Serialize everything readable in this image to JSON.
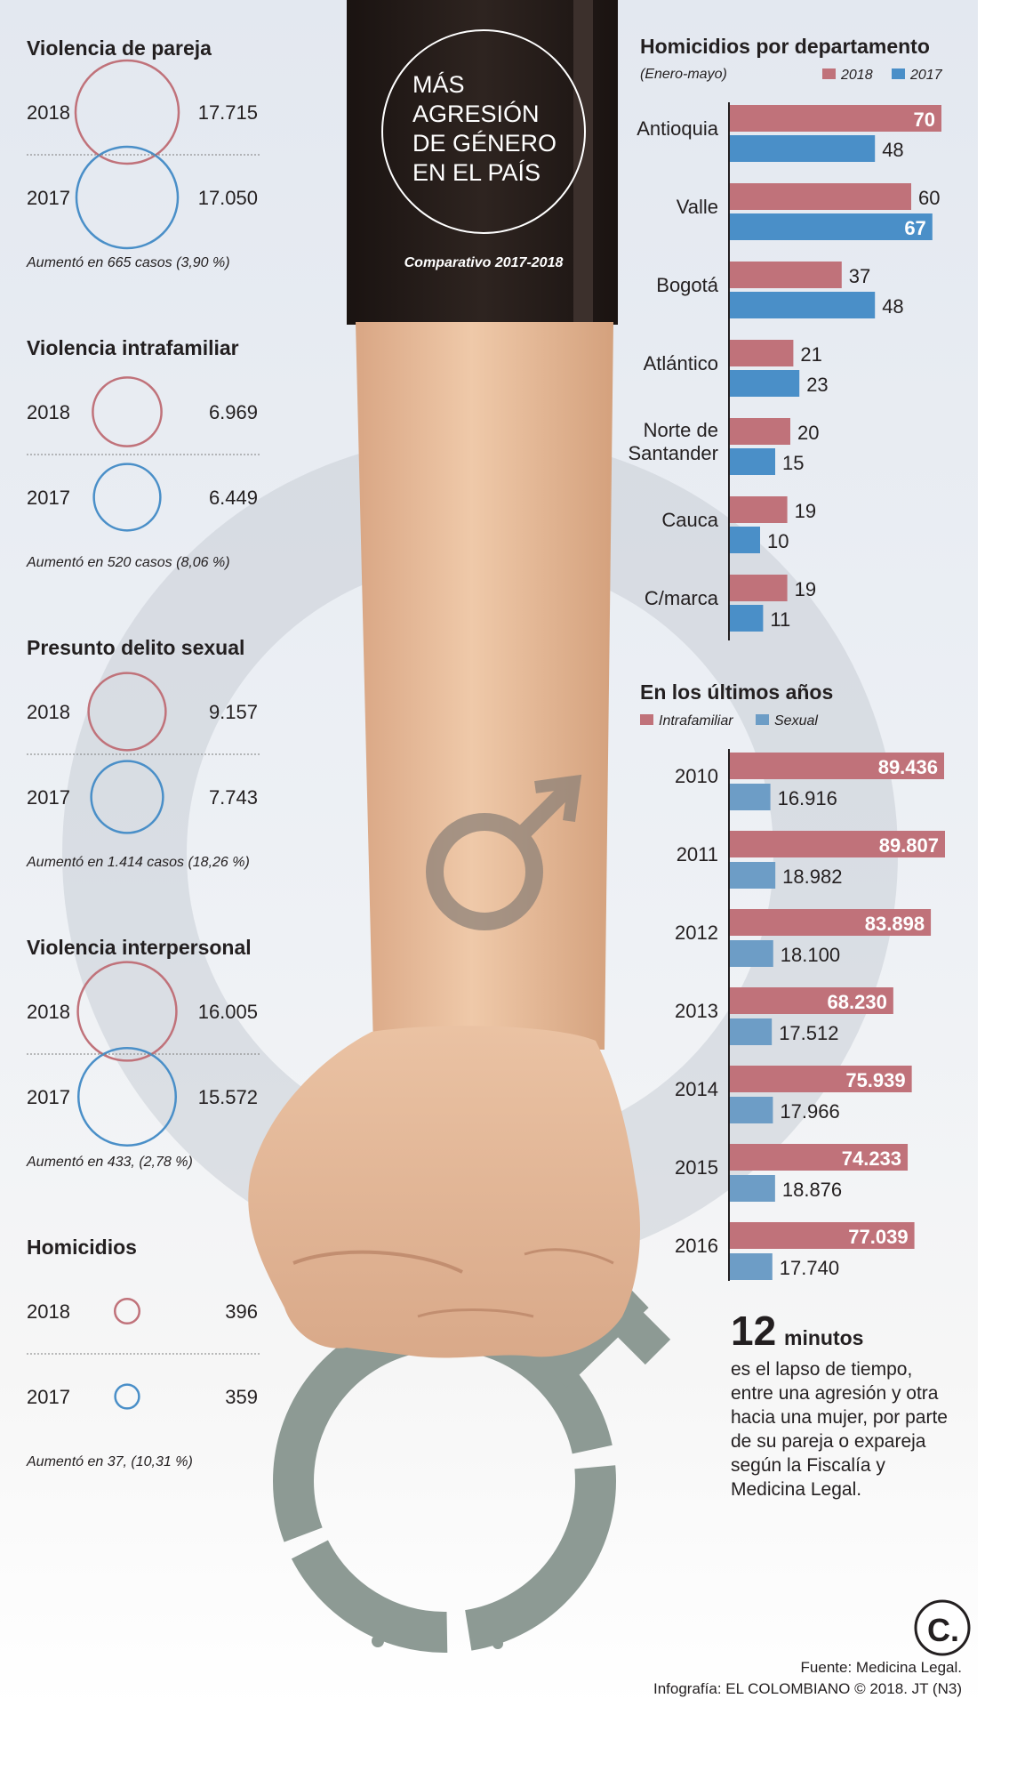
{
  "header": {
    "title_lines": [
      "MÁS",
      "AGRESIÓN",
      "DE GÉNERO",
      "EN EL PAÍS"
    ],
    "subtitle": "Comparativo 2017-2018"
  },
  "comparisons": [
    {
      "title": "Violencia de pareja",
      "rows": [
        {
          "year": "2018",
          "value": 17715,
          "label": "17.715"
        },
        {
          "year": "2017",
          "value": 17050,
          "label": "17.050"
        }
      ],
      "note": "Aumentó en 665 casos (3,90 %)"
    },
    {
      "title": "Violencia intrafamiliar",
      "rows": [
        {
          "year": "2018",
          "value": 6969,
          "label": "6.969"
        },
        {
          "year": "2017",
          "value": 6449,
          "label": "6.449"
        }
      ],
      "note": "Aumentó en 520 casos (8,06 %)"
    },
    {
      "title": "Presunto delito sexual",
      "rows": [
        {
          "year": "2018",
          "value": 9157,
          "label": "9.157"
        },
        {
          "year": "2017",
          "value": 7743,
          "label": "7.743"
        }
      ],
      "note": "Aumentó en 1.414 casos (18,26 %)"
    },
    {
      "title": "Violencia interpersonal",
      "rows": [
        {
          "year": "2018",
          "value": 16005,
          "label": "16.005"
        },
        {
          "year": "2017",
          "value": 15572,
          "label": "15.572"
        }
      ],
      "note": "Aumentó en 433, (2,78 %)"
    },
    {
      "title": "Homicidios",
      "rows": [
        {
          "year": "2018",
          "value": 396,
          "label": "396"
        },
        {
          "year": "2017",
          "value": 359,
          "label": "359"
        }
      ],
      "note": "Aumentó en 37, (10,31 %)"
    }
  ],
  "chart_data": [
    {
      "type": "bar",
      "orientation": "horizontal",
      "title": "Homicidios por departamento",
      "subtitle": "(Enero-mayo)",
      "legend": [
        "2018",
        "2017"
      ],
      "categories": [
        "Antioquia",
        "Valle",
        "Bogotá",
        "Atlántico",
        "Norte de Santander",
        "Cauca",
        "C/marca"
      ],
      "category_lines": [
        [
          "Antioquia"
        ],
        [
          "Valle"
        ],
        [
          "Bogotá"
        ],
        [
          "Atlántico"
        ],
        [
          "Norte de",
          "Santander"
        ],
        [
          "Cauca"
        ],
        [
          "C/marca"
        ]
      ],
      "series": [
        {
          "name": "2018",
          "values": [
            70,
            60,
            37,
            21,
            20,
            19,
            19
          ],
          "labels": [
            "70",
            "60",
            "37",
            "21",
            "20",
            "19",
            "19"
          ]
        },
        {
          "name": "2017",
          "values": [
            48,
            67,
            48,
            23,
            15,
            10,
            11
          ],
          "labels": [
            "48",
            "67",
            "48",
            "23",
            "15",
            "10",
            "11"
          ]
        }
      ]
    },
    {
      "type": "bar",
      "orientation": "horizontal",
      "title": "En los últimos años",
      "legend": [
        "Intrafamiliar",
        "Sexual"
      ],
      "categories": [
        "2010",
        "2011",
        "2012",
        "2013",
        "2014",
        "2015",
        "2016"
      ],
      "series": [
        {
          "name": "Intrafamiliar",
          "values": [
            89436,
            89807,
            83898,
            68230,
            75939,
            74233,
            77039
          ],
          "labels": [
            "89.436",
            "89.807",
            "83.898",
            "68.230",
            "75.939",
            "74.233",
            "77.039"
          ]
        },
        {
          "name": "Sexual",
          "values": [
            16916,
            18982,
            18100,
            17512,
            17966,
            18876,
            17740
          ],
          "labels": [
            "16.916",
            "18.982",
            "18.100",
            "17.512",
            "17.966",
            "18.876",
            "17.740"
          ]
        }
      ]
    }
  ],
  "fact": {
    "number": "12",
    "unit": "minutos",
    "lines": [
      "es el lapso de tiempo,",
      "entre una agresión y otra",
      "hacia una mujer, por parte",
      "de su pareja o expareja",
      "según la Fiscalía y",
      "Medicina Legal."
    ]
  },
  "footer": {
    "source": "Fuente: Medicina Legal.",
    "credit": "Infografía: EL COLOMBIANO © 2018. JT (N3)",
    "logo_letter": "C."
  },
  "colors": {
    "red_2018": "#c0727a",
    "blue_2017": "#4a8fc8",
    "blue_muted": "#6d9dc6",
    "header_black": "#231815",
    "skin": "#e3b795"
  }
}
